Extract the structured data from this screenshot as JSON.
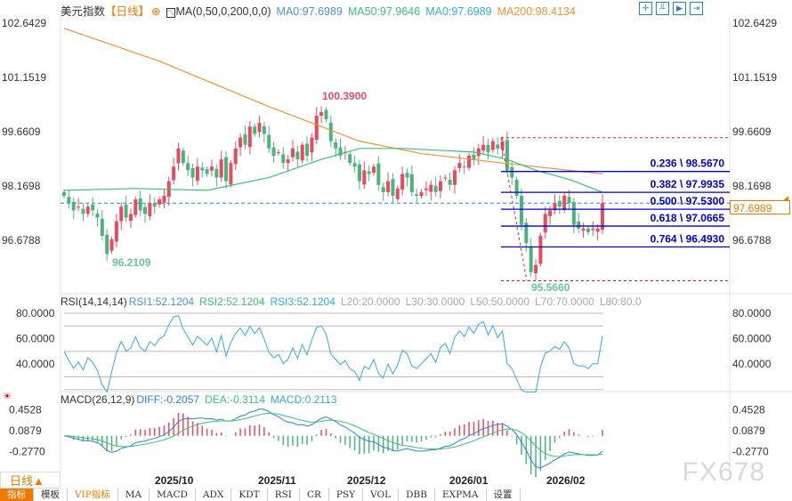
{
  "header": {
    "symbol": "美元指数",
    "period_tag": "【日线】",
    "indicator": "MA(0,50,0,200,0,0)",
    "ma0": "MA0:97.6989",
    "ma50": "MA50:97.9646",
    "ma0b": "MA0:97.6989",
    "ma200": "MA200:98.4134",
    "tool_icons": [
      "crosshair-icon",
      "candle-tool-icon",
      "play-icon",
      "exit-icon"
    ]
  },
  "colors": {
    "up": "#e84a5f",
    "down": "#4db37e",
    "ma50": "#3cbf7a",
    "ma200": "#f5913a",
    "fib": "#0000d8",
    "dash": "#1e88e5",
    "accent": "#f07800",
    "rsi": "#35a8e8",
    "diff": "#2f7fd8",
    "dea": "#3cbf7a"
  },
  "price_axis": [
    "102.6429",
    "101.1519",
    "99.6609",
    "98.1698",
    "96.6788"
  ],
  "current_price": "97.6989",
  "annotations": {
    "high": "100.3900",
    "low1": "96.2109",
    "low2": "95.5660"
  },
  "fib": [
    {
      "label": "0.236 \\ 98.5670",
      "value": 98.567
    },
    {
      "label": "0.382 \\ 97.9935",
      "value": 97.9935
    },
    {
      "label": "0.500 \\ 97.5300",
      "value": 97.53
    },
    {
      "label": "0.618 \\ 97.0665",
      "value": 97.0665
    },
    {
      "label": "0.764 \\ 96.4930",
      "value": 96.493
    }
  ],
  "fib_range": {
    "high": 99.494,
    "low": 95.566
  },
  "closes": [
    97.9,
    97.7,
    97.5,
    97.6,
    97.4,
    97.6,
    97.5,
    97.3,
    96.8,
    96.3,
    96.7,
    97.2,
    97.6,
    97.3,
    97.4,
    97.8,
    97.5,
    97.4,
    97.7,
    97.6,
    97.8,
    97.9,
    98.3,
    98.7,
    99.2,
    98.8,
    98.6,
    98.4,
    98.7,
    98.6,
    98.5,
    98.7,
    98.4,
    98.9,
    98.3,
    98.8,
    99.2,
    99.5,
    99.3,
    99.8,
    99.6,
    99.9,
    99.6,
    99.2,
    99.0,
    99.1,
    98.8,
    98.9,
    99.2,
    98.9,
    99.3,
    99.0,
    99.5,
    100.1,
    100.2,
    100.0,
    99.4,
    99.2,
    99.0,
    99.1,
    98.8,
    98.7,
    98.3,
    98.6,
    98.5,
    98.7,
    98.2,
    98.0,
    98.3,
    97.9,
    98.1,
    98.5,
    98.4,
    98.0,
    97.9,
    98.0,
    98.1,
    98.2,
    98.0,
    98.3,
    98.4,
    98.2,
    98.6,
    98.8,
    98.7,
    99.0,
    98.9,
    99.2,
    99.3,
    99.1,
    99.4,
    99.2,
    99.4,
    98.6,
    98.4,
    97.9,
    97.1,
    96.6,
    95.8,
    96.0,
    96.8,
    97.4,
    97.5,
    97.7,
    97.6,
    97.9,
    97.7,
    97.1,
    97.0,
    97.0,
    96.9,
    97.0,
    97.0,
    97.7
  ],
  "ma50": [
    [
      0,
      98.05
    ],
    [
      15,
      98.1
    ],
    [
      30,
      98.05
    ],
    [
      43,
      98.4
    ],
    [
      54,
      98.9
    ],
    [
      62,
      99.2
    ],
    [
      71,
      99.2
    ],
    [
      86,
      99.1
    ],
    [
      93,
      98.9
    ],
    [
      99,
      98.6
    ],
    [
      106,
      98.35
    ],
    [
      113,
      98.0
    ]
  ],
  "ma200": [
    [
      0,
      102.5
    ],
    [
      20,
      101.6
    ],
    [
      43,
      100.35
    ],
    [
      62,
      99.4
    ],
    [
      75,
      99.06
    ],
    [
      92,
      98.8
    ],
    [
      113,
      98.5
    ]
  ],
  "rsi": {
    "title": "RSI(14,14,14)",
    "rsi1": "RSI1:52.1204",
    "rsi2": "RSI2:52.1204",
    "rsi3": "RSI3:52.1204",
    "l20": "L20:20.0000",
    "l30": "L30:30.0000",
    "l50": "L50:50.0000",
    "l70": "L70:70.0000",
    "l80": "L80:80.0",
    "axis": [
      "80.0000",
      "60.0000",
      "40.0000"
    ]
  },
  "macd": {
    "title": "MACD(26,12,9)",
    "diff": "DIFF:-0.2057",
    "dea": "DEA:-0.3114",
    "macd": "MACD:0.2113",
    "axis": [
      "0.4528",
      "0.0879",
      "-0.2770"
    ]
  },
  "x_axis": [
    "2025/10",
    "2025/11",
    "2025/12",
    "2026/01",
    "2026/02"
  ],
  "period_selector": "日线▲",
  "tabs": [
    "指标",
    "模板",
    "VIP指标",
    "MA",
    "MACD",
    "ADX",
    "KDT",
    "RSI",
    "CR",
    "PSY",
    "VOL",
    "DBB",
    "EXPMA",
    "设置"
  ],
  "watermark": "FX678"
}
